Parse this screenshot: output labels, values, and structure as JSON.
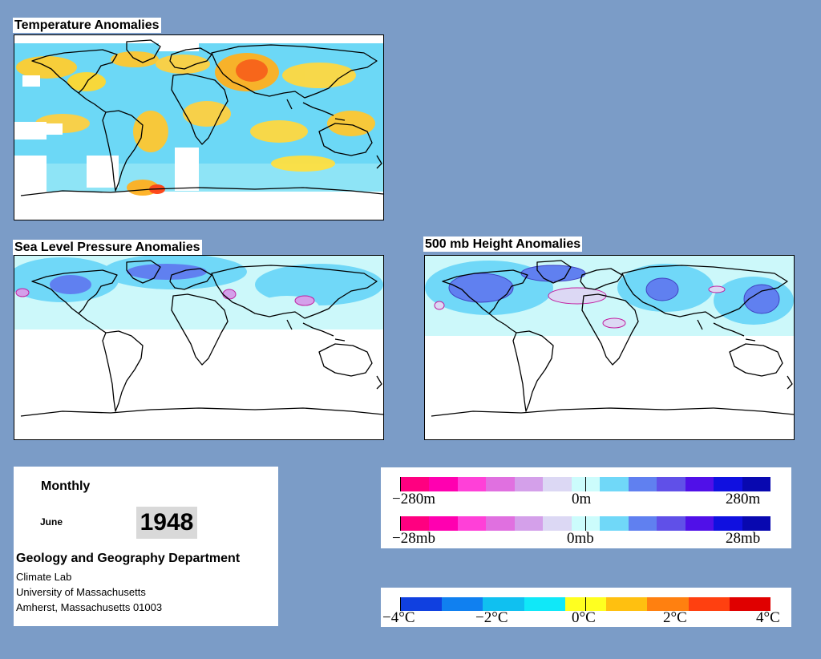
{
  "panels": {
    "temperature": {
      "title": "Temperature Anomalies"
    },
    "slp": {
      "title": "Sea Level Pressure Anomalies"
    },
    "height": {
      "title": "500 mb Height Anomalies"
    }
  },
  "info": {
    "period": "Monthly",
    "month": "June",
    "year": "1948",
    "department": "Geology and Geography Department",
    "address": [
      "Climate Lab",
      "University of Massachusetts",
      "Amherst, Massachusetts 01003"
    ]
  },
  "legends": {
    "height": {
      "labels": [
        "−280m",
        "0m",
        "280m"
      ]
    },
    "pressure": {
      "labels": [
        "−28mb",
        "0mb",
        "28mb"
      ]
    },
    "temperature": {
      "labels": [
        "−4°C",
        "−2°C",
        "0°C",
        "2°C",
        "4°C"
      ]
    },
    "anomaly_colors": [
      "#ff0080",
      "#ff00b0",
      "#ff40d8",
      "#e070e0",
      "#d4a0ea",
      "#dcd8f4",
      "#ccfcfc",
      "#70d8f8",
      "#6080f0",
      "#6050e8",
      "#5010e8",
      "#1010e0",
      "#0808b0"
    ],
    "temperature_colors": [
      "#1040e0",
      "#1080f0",
      "#10c0f0",
      "#10e8f8",
      "#ffff20",
      "#ffc010",
      "#ff8010",
      "#ff4010",
      "#e00000"
    ]
  }
}
